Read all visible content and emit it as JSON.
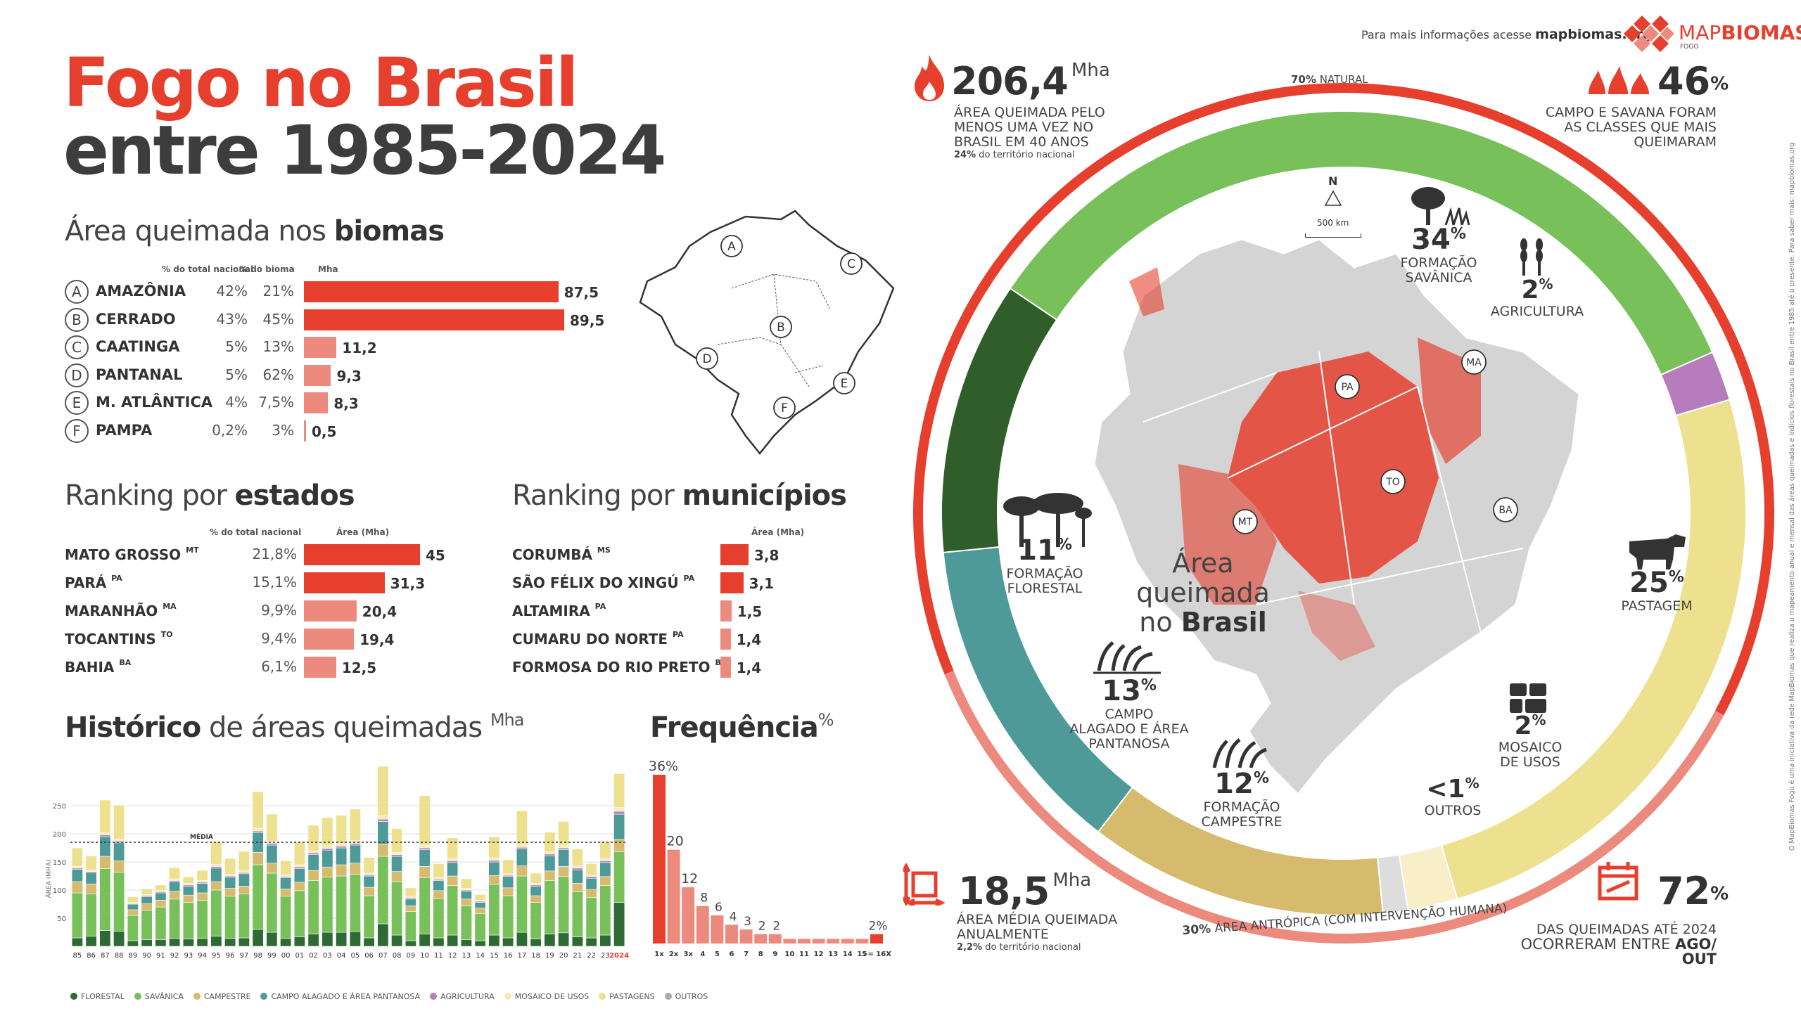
{
  "header": {
    "title_line1": "Fogo no Brasil",
    "title_line2": "entre 1985-2024",
    "info_prefix": "Para mais informações acesse",
    "info_link": "mapbiomas.org",
    "logo_text_map": "MAP",
    "logo_text_biomas": "BIOMAS",
    "logo_sub": "FOGO"
  },
  "colors": {
    "accent_red": "#e63f2e",
    "light_red": "#ec8a7e",
    "dark_text": "#333333",
    "florestal": "#2f6a34",
    "savanica": "#78c05a",
    "campestre": "#d6bb6e",
    "campo_alagado": "#4d9a98",
    "agricultura": "#b77cbc",
    "mosaico": "#f5e9b8",
    "pastagens": "#ede08f",
    "outros": "#cccccc"
  },
  "biomas": {
    "title_normal": "Área queimada nos ",
    "title_bold": "biomas",
    "col_pct_total": "% do total nacional",
    "col_pct_bioma": "% do bioma",
    "col_mha": "Mha",
    "rows": [
      {
        "letter": "A",
        "name": "AMAZÔNIA",
        "pct_total": "42%",
        "pct_bioma": "21%",
        "mha": 87.5,
        "mha_label": "87,5"
      },
      {
        "letter": "B",
        "name": "CERRADO",
        "pct_total": "43%",
        "pct_bioma": "45%",
        "mha": 89.5,
        "mha_label": "89,5"
      },
      {
        "letter": "C",
        "name": "CAATINGA",
        "pct_total": "5%",
        "pct_bioma": "13%",
        "mha": 11.2,
        "mha_label": "11,2"
      },
      {
        "letter": "D",
        "name": "PANTANAL",
        "pct_total": "5%",
        "pct_bioma": "62%",
        "mha": 9.3,
        "mha_label": "9,3"
      },
      {
        "letter": "E",
        "name": "M. ATLÂNTICA",
        "pct_total": "4%",
        "pct_bioma": "7,5%",
        "mha": 8.3,
        "mha_label": "8,3"
      },
      {
        "letter": "F",
        "name": "PAMPA",
        "pct_total": "0,2%",
        "pct_bioma": "3%",
        "mha": 0.5,
        "mha_label": "0,5"
      }
    ],
    "map_letters": [
      "A",
      "B",
      "C",
      "D",
      "E",
      "F"
    ]
  },
  "estados": {
    "title_normal": "Ranking por ",
    "title_bold": "estados",
    "col_pct_total": "% do total nacional",
    "col_area": "Área (Mha)",
    "rows": [
      {
        "name": "MATO GROSSO",
        "uf": "MT",
        "pct": "21,8%",
        "mha": 45,
        "label": "45"
      },
      {
        "name": "PARÁ",
        "uf": "PA",
        "pct": "15,1%",
        "mha": 31.3,
        "label": "31,3"
      },
      {
        "name": "MARANHÃO",
        "uf": "MA",
        "pct": "9,9%",
        "mha": 20.4,
        "label": "20,4"
      },
      {
        "name": "TOCANTINS",
        "uf": "TO",
        "pct": "9,4%",
        "mha": 19.4,
        "label": "19,4"
      },
      {
        "name": "BAHIA",
        "uf": "BA",
        "pct": "6,1%",
        "mha": 12.5,
        "label": "12,5"
      }
    ]
  },
  "municipios": {
    "title_normal": "Ranking por ",
    "title_bold": "municípios",
    "col_area": "Área (Mha)",
    "rows": [
      {
        "name": "CORUMBÁ",
        "uf": "MS",
        "mha": 3.8,
        "label": "3,8"
      },
      {
        "name": "SÃO FÉLIX DO XINGÚ",
        "uf": "PA",
        "mha": 3.1,
        "label": "3,1"
      },
      {
        "name": "ALTAMIRA",
        "uf": "PA",
        "mha": 1.5,
        "label": "1,5"
      },
      {
        "name": "CUMARU DO NORTE",
        "uf": "PA",
        "mha": 1.4,
        "label": "1,4"
      },
      {
        "name": "FORMOSA DO RIO PRETO",
        "uf": "BA",
        "mha": 1.4,
        "label": "1,4"
      }
    ]
  },
  "historico": {
    "title_bold": "Histórico",
    "title_normal": " de áreas queimadas",
    "title_unit": "Mha",
    "ylabel": "ÁREA (MHA)",
    "media_label": "MÉDIA",
    "legend": [
      {
        "key": "florestal",
        "label": "FLORESTAL",
        "color": "#2f6a34"
      },
      {
        "key": "savanica",
        "label": "SAVÂNICA",
        "color": "#78c05a"
      },
      {
        "key": "campestre",
        "label": "CAMPESTRE",
        "color": "#d6bb6e"
      },
      {
        "key": "campo_alagado",
        "label": "CAMPO ALAGADO E ÁREA PANTANOSA",
        "color": "#4d9a98"
      },
      {
        "key": "agricultura",
        "label": "AGRICULTURA",
        "color": "#b77cbc"
      },
      {
        "key": "mosaico",
        "label": "MOSAICO DE USOS",
        "color": "#f5e9b8"
      },
      {
        "key": "pastagens",
        "label": "PASTAGENS",
        "color": "#ede08f"
      },
      {
        "key": "outros",
        "label": "OUTROS",
        "color": "#aaaaaa"
      }
    ]
  },
  "chart_data": [
    {
      "type": "bar",
      "stacked": true,
      "title": "Histórico de áreas queimadas",
      "ylabel": "ÁREA (MHA)",
      "ylim": [
        0,
        300
      ],
      "yticks": [
        50,
        100,
        150,
        200,
        250
      ],
      "media": 185,
      "categories": [
        "85",
        "86",
        "87",
        "88",
        "89",
        "90",
        "91",
        "92",
        "93",
        "94",
        "95",
        "96",
        "97",
        "98",
        "99",
        "00",
        "01",
        "02",
        "03",
        "04",
        "05",
        "06",
        "07",
        "08",
        "09",
        "10",
        "11",
        "12",
        "13",
        "14",
        "15",
        "16",
        "17",
        "18",
        "19",
        "20",
        "21",
        "22",
        "23",
        "2024"
      ],
      "series": [
        {
          "name": "FLORESTAL",
          "values": [
            15,
            18,
            28,
            27,
            10,
            12,
            12,
            14,
            13,
            14,
            18,
            14,
            15,
            30,
            25,
            14,
            17,
            22,
            25,
            25,
            26,
            15,
            40,
            20,
            10,
            22,
            15,
            20,
            12,
            10,
            20,
            15,
            25,
            13,
            22,
            24,
            17,
            15,
            20,
            78
          ]
        },
        {
          "name": "SAVÂNICA",
          "values": [
            80,
            75,
            110,
            105,
            45,
            52,
            58,
            70,
            65,
            68,
            82,
            75,
            78,
            115,
            105,
            75,
            82,
            95,
            98,
            100,
            102,
            75,
            120,
            95,
            52,
            100,
            70,
            88,
            60,
            48,
            90,
            75,
            100,
            65,
            95,
            100,
            80,
            72,
            88,
            90
          ]
        },
        {
          "name": "CAMPESTRE",
          "values": [
            20,
            18,
            22,
            20,
            10,
            12,
            12,
            14,
            13,
            13,
            15,
            14,
            14,
            22,
            18,
            13,
            15,
            18,
            18,
            20,
            20,
            15,
            22,
            18,
            10,
            20,
            14,
            17,
            12,
            10,
            16,
            14,
            18,
            12,
            17,
            18,
            15,
            14,
            16,
            22
          ]
        },
        {
          "name": "CAMPO ALAGADO E ÁREA PANTANOSA",
          "values": [
            22,
            20,
            35,
            32,
            10,
            12,
            13,
            17,
            16,
            17,
            24,
            20,
            22,
            35,
            32,
            20,
            24,
            28,
            30,
            30,
            32,
            20,
            40,
            27,
            12,
            30,
            18,
            24,
            14,
            10,
            24,
            20,
            30,
            17,
            27,
            30,
            24,
            20,
            25,
            45
          ]
        },
        {
          "name": "AGRICULTURA",
          "values": [
            2,
            2,
            3,
            3,
            1,
            2,
            2,
            2,
            2,
            2,
            3,
            2,
            2,
            3,
            3,
            2,
            3,
            3,
            3,
            3,
            3,
            2,
            4,
            3,
            2,
            3,
            2,
            3,
            2,
            2,
            3,
            2,
            3,
            2,
            3,
            3,
            3,
            3,
            3,
            5
          ]
        },
        {
          "name": "MOSAICO DE USOS",
          "values": [
            3,
            3,
            4,
            4,
            2,
            2,
            2,
            3,
            3,
            3,
            4,
            3,
            3,
            5,
            4,
            3,
            4,
            4,
            5,
            5,
            5,
            3,
            6,
            4,
            3,
            5,
            3,
            4,
            3,
            2,
            4,
            3,
            5,
            3,
            4,
            5,
            4,
            3,
            4,
            7
          ]
        },
        {
          "name": "PASTAGENS",
          "values": [
            33,
            25,
            58,
            60,
            10,
            10,
            10,
            20,
            12,
            18,
            40,
            28,
            35,
            65,
            48,
            25,
            40,
            45,
            50,
            50,
            56,
            28,
            88,
            42,
            15,
            88,
            25,
            37,
            17,
            10,
            38,
            25,
            60,
            18,
            35,
            42,
            30,
            20,
            30,
            60
          ]
        },
        {
          "name": "OUTROS",
          "values": [
            0,
            0,
            0,
            0,
            0,
            0,
            0,
            0,
            0,
            0,
            0,
            0,
            0,
            0,
            0,
            0,
            0,
            0,
            0,
            0,
            0,
            0,
            0,
            0,
            0,
            0,
            0,
            0,
            0,
            0,
            0,
            0,
            0,
            0,
            0,
            0,
            0,
            0,
            0,
            0
          ]
        }
      ]
    },
    {
      "type": "bar",
      "title": "Frequência",
      "unit": "%",
      "categories": [
        "1x",
        "2x",
        "3x",
        "4",
        "5",
        "6",
        "7",
        "8",
        "9",
        "10",
        "11",
        "12",
        "13",
        "14",
        "15",
        ">= 16X"
      ],
      "values": [
        36,
        20,
        12,
        8,
        6,
        4,
        3,
        2,
        2,
        1,
        1,
        1,
        1,
        1,
        1,
        2
      ],
      "labels": [
        "36%",
        "20",
        "12",
        "8",
        "6",
        "4",
        "3",
        "2",
        "2",
        "",
        "",
        "",
        "",
        "",
        "",
        "2%"
      ]
    }
  ],
  "map_section": {
    "title_line1": "Área",
    "title_line2": "queimada",
    "title_line3_normal": "no ",
    "title_line3_bold": "Brasil",
    "north_label": "N",
    "scale_label": "500 km",
    "states": [
      "PA",
      "MA",
      "TO",
      "MT",
      "BA"
    ]
  },
  "ring": {
    "natural_pct": "70%",
    "natural_label": "NATURAL",
    "antropica_pct": "30%",
    "antropica_label": "ÁREA ANTRÓPICA (COM INTERVENÇÃO HUMANA)",
    "segments": [
      {
        "key": "savanica",
        "value": 34,
        "color": "#78c05a"
      },
      {
        "key": "agricultura",
        "value": 2,
        "color": "#b77cbc"
      },
      {
        "key": "pastagem",
        "value": 25,
        "color": "#ede08f"
      },
      {
        "key": "mosaico",
        "value": 2,
        "color": "#f8eec7"
      },
      {
        "key": "outros",
        "value": 1,
        "color": "#dddddd"
      },
      {
        "key": "campestre",
        "value": 12,
        "color": "#d6bb6e"
      },
      {
        "key": "campo_alagado",
        "value": 13,
        "color": "#4d9a98"
      },
      {
        "key": "florestal",
        "value": 11,
        "color": "#2f5e2b"
      }
    ]
  },
  "classes": {
    "savanica": {
      "pct": "34",
      "sym": "%",
      "label1": "FORMAÇÃO",
      "label2": "SAVÂNICA"
    },
    "agricultura": {
      "pct": "2",
      "sym": "%",
      "label1": "AGRICULTURA"
    },
    "florestal": {
      "pct": "11",
      "sym": "%",
      "label1": "FORMAÇÃO",
      "label2": "FLORESTAL"
    },
    "pastagem": {
      "pct": "25",
      "sym": "%",
      "label1": "PASTAGEM"
    },
    "campo_alagado": {
      "pct": "13",
      "sym": "%",
      "label1": "CAMPO",
      "label2": "ALAGADO E ÁREA",
      "label3": "PANTANOSA"
    },
    "mosaico": {
      "pct": "2",
      "sym": "%",
      "label1": "MOSAICO",
      "label2": "DE USOS"
    },
    "campestre": {
      "pct": "12",
      "sym": "%",
      "label1": "FORMAÇÃO",
      "label2": "CAMPESTRE"
    },
    "outros": {
      "pct": "<1",
      "sym": "%",
      "label1": "OUTROS"
    }
  },
  "stats": {
    "total": {
      "value": "206,4",
      "unit": "Mha",
      "line1": "ÁREA QUEIMADA PELO",
      "line2": "MENOS UMA VEZ NO",
      "line3": "BRASIL EM 40 ANOS",
      "note_bold": "24%",
      "note": " do território nacional"
    },
    "campo_savana": {
      "value": "46",
      "unit": "%",
      "line1": "CAMPO E SAVANA FORAM",
      "line2": "AS CLASSES QUE MAIS",
      "line3": "QUEIMARAM"
    },
    "media": {
      "value": "18,5",
      "unit": "Mha",
      "line1": "ÁREA MÉDIA QUEIMADA",
      "line2": "ANUALMENTE",
      "note_bold": "2,2%",
      "note": " do território nacional"
    },
    "periodo": {
      "value": "72",
      "unit": "%",
      "line1": "DAS QUEIMADAS ATÉ 2024",
      "line2_normal": "OCORRERAM ENTRE ",
      "line2_bold": "AGO/ OUT"
    }
  },
  "side_note": "O MapBiomas Fogo é uma iniciativa da rede MapBiomas que realiza o mapeamento anual e mensal das áreas queimadas e indícios florestais no Brasil entre 1985 até o presente. Para saber mais: mapbiomas.org"
}
